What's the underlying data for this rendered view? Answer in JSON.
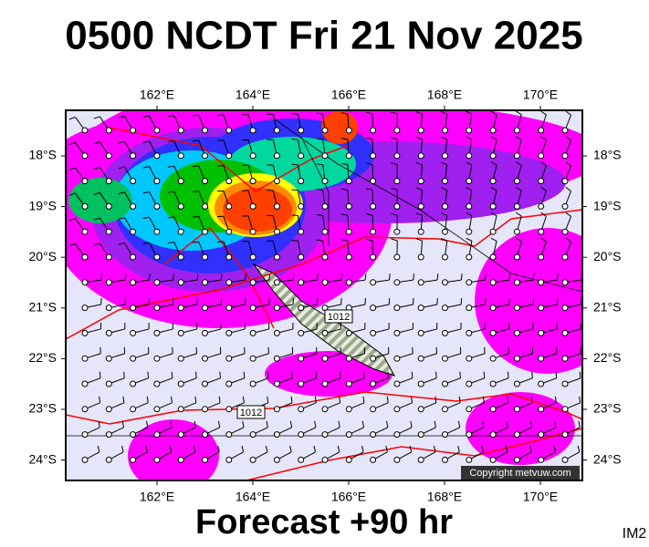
{
  "header": {
    "title": "0500 NCDT Fri 21 Nov 2025"
  },
  "map": {
    "lon_labels": [
      "162°E",
      "164°E",
      "166°E",
      "168°E",
      "170°E"
    ],
    "lat_labels": [
      "18°S",
      "19°S",
      "20°S",
      "21°S",
      "22°S",
      "23°S",
      "24°S"
    ],
    "isobar_labels": [
      "1012",
      "1012"
    ],
    "copyright": "Copyright metvuw.com"
  },
  "footer": {
    "forecast": "Forecast +90 hr",
    "code": "IM2"
  }
}
